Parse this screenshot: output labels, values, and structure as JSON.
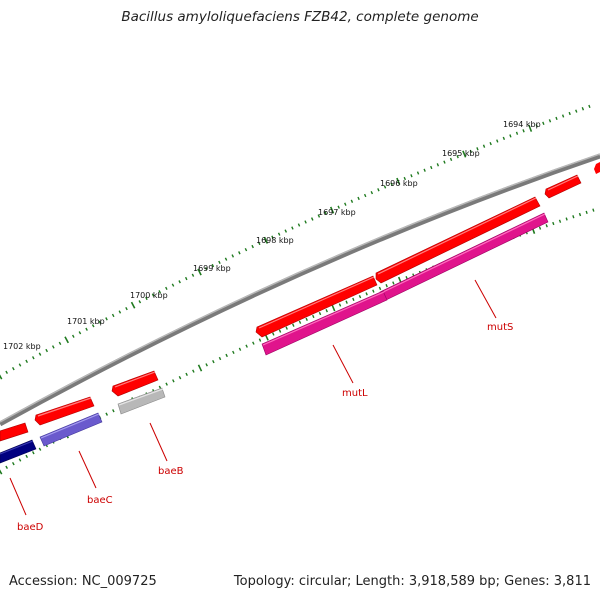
{
  "title": "Bacillus amyloliquefaciens FZB42, complete genome",
  "footer": {
    "accession": "Accession: NC_009725",
    "summary": "Topology: circular; Length: 3,918,589 bp; Genes: 3,811"
  },
  "colors": {
    "backbone": "#8a8a8a",
    "ruler": "#1f7a1f",
    "cds_forward": "#ff0000",
    "label": "#cc0000"
  },
  "ruler_labels": [
    "1694 kbp",
    "1695 kbp",
    "1696 kbp",
    "1697 kbp",
    "1698 kbp",
    "1699 kbp",
    "1700 kbp",
    "1701 kbp",
    "1702 kbp"
  ],
  "genes": [
    {
      "name": "mutS",
      "color": "#e0148c"
    },
    {
      "name": "mutL",
      "color": "#e0148c"
    },
    {
      "name": "baeB",
      "color": "#b8b8b8"
    },
    {
      "name": "baeC",
      "color": "#6a5acd"
    },
    {
      "name": "baeD",
      "color": "#000080"
    }
  ]
}
